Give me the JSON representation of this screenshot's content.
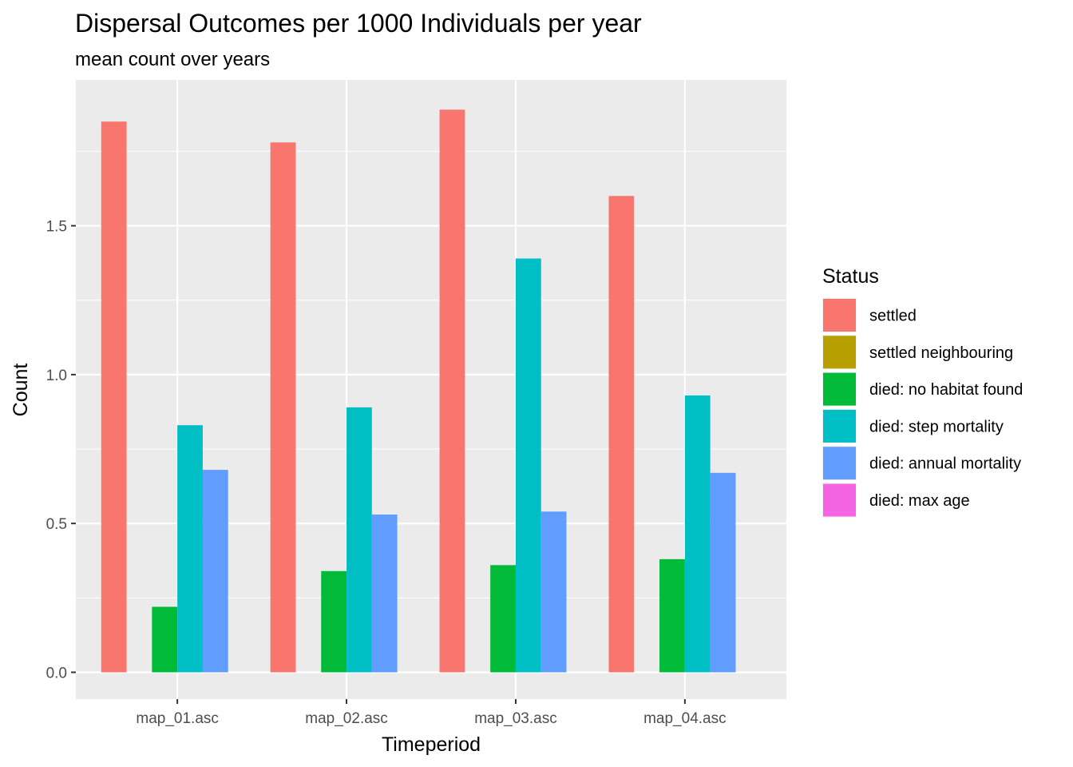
{
  "chart_data": {
    "type": "bar",
    "title": "Dispersal Outcomes per 1000 Individuals per year",
    "subtitle": "mean count over years",
    "xlabel": "Timeperiod",
    "ylabel": "Count",
    "ylim": [
      -0.09,
      1.99
    ],
    "yticks": [
      0.0,
      0.5,
      1.0,
      1.5
    ],
    "ytick_labels": [
      "0.0",
      "0.5",
      "1.0",
      "1.5"
    ],
    "grid": true,
    "legend_position": "right",
    "legend_title": "Status",
    "categories": [
      "map_01.asc",
      "map_02.asc",
      "map_03.asc",
      "map_04.asc"
    ],
    "series": [
      {
        "name": "settled",
        "color": "#F8766D",
        "values": [
          1.85,
          1.78,
          1.89,
          1.6
        ]
      },
      {
        "name": "settled neighbouring",
        "color": "#B79F00",
        "values": [
          0,
          0,
          0,
          0
        ]
      },
      {
        "name": "died: no habitat found",
        "color": "#00BA38",
        "values": [
          0.22,
          0.34,
          0.36,
          0.38
        ]
      },
      {
        "name": "died: step mortality",
        "color": "#00BFC4",
        "values": [
          0.83,
          0.89,
          1.39,
          0.93
        ]
      },
      {
        "name": "died: annual mortality",
        "color": "#619CFF",
        "values": [
          0.68,
          0.53,
          0.54,
          0.67
        ]
      },
      {
        "name": "died: max age",
        "color": "#F564E3",
        "values": [
          0,
          0,
          0,
          0
        ]
      }
    ]
  }
}
